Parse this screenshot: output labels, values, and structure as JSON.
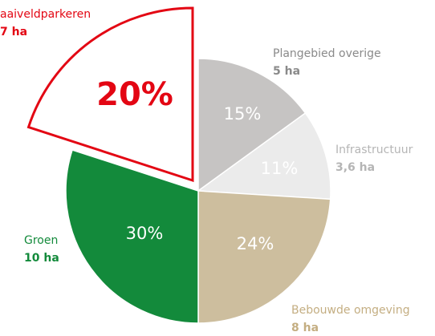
{
  "chart_data": {
    "type": "pie",
    "categories": [
      "Plangebied overige",
      "Infrastructuur",
      "Bebouwde omgeving",
      "Groen",
      "aaiveldparkeren"
    ],
    "values": [
      15,
      11,
      24,
      30,
      20
    ],
    "value_labels": [
      "15%",
      "11%",
      "24%",
      "30%",
      "20%"
    ],
    "area_labels": [
      "5 ha",
      "3,6 ha",
      "8 ha",
      "10 ha",
      "7 ha"
    ],
    "colors": [
      "#c6c4c3",
      "#ebebeb",
      "#cdbe9e",
      "#138a3b",
      "#e30613"
    ],
    "exploded": [
      false,
      false,
      false,
      false,
      true
    ]
  }
}
